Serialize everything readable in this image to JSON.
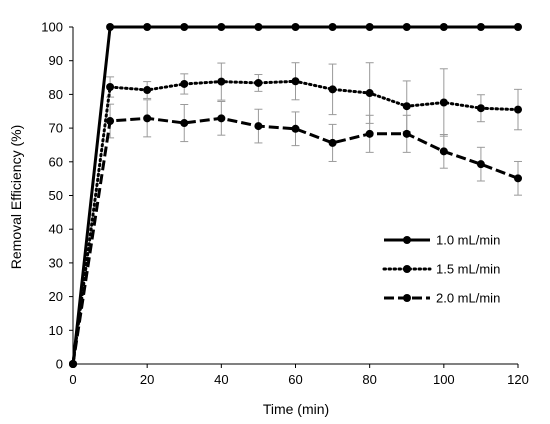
{
  "chart_data": {
    "type": "line",
    "title": "",
    "xlabel": "Time (min)",
    "ylabel": "Removal Efficiency (%)",
    "xlim": [
      0,
      120
    ],
    "ylim": [
      0,
      100
    ],
    "xticks": [
      "0",
      "20",
      "40",
      "60",
      "80",
      "100",
      "120"
    ],
    "yticks": [
      "0",
      "10",
      "20",
      "30",
      "40",
      "50",
      "60",
      "70",
      "80",
      "90",
      "100"
    ],
    "grid": false,
    "legend": "right",
    "x": [
      0,
      10,
      20,
      30,
      40,
      50,
      60,
      70,
      80,
      90,
      100,
      110,
      120
    ],
    "series": [
      {
        "name": "1.0 mL/min",
        "dash": "solid",
        "values": [
          0,
          100,
          100,
          100,
          100,
          100,
          100,
          100,
          100,
          100,
          100,
          100,
          100
        ],
        "error": [
          0,
          0,
          0,
          0,
          0,
          0,
          0,
          0,
          0,
          0,
          0,
          0,
          0
        ]
      },
      {
        "name": "1.5 mL/min",
        "dash": "dotted",
        "values": [
          0,
          82.2,
          81.3,
          83.1,
          83.8,
          83.4,
          83.9,
          81.5,
          80.4,
          76.5,
          77.6,
          75.9,
          75.5
        ],
        "error": [
          0,
          3,
          2.5,
          3,
          5.5,
          2.5,
          5.5,
          7.5,
          9,
          7.5,
          10,
          4,
          6
        ]
      },
      {
        "name": "2.0 mL/min",
        "dash": "dashed",
        "values": [
          0,
          72.1,
          72.9,
          71.5,
          72.9,
          70.6,
          69.8,
          65.6,
          68.3,
          68.3,
          63.1,
          59.3,
          55.1
        ],
        "error": [
          0,
          5,
          5.5,
          5.5,
          5,
          5,
          5,
          5.5,
          5.5,
          5.5,
          5,
          5,
          5
        ]
      }
    ]
  }
}
